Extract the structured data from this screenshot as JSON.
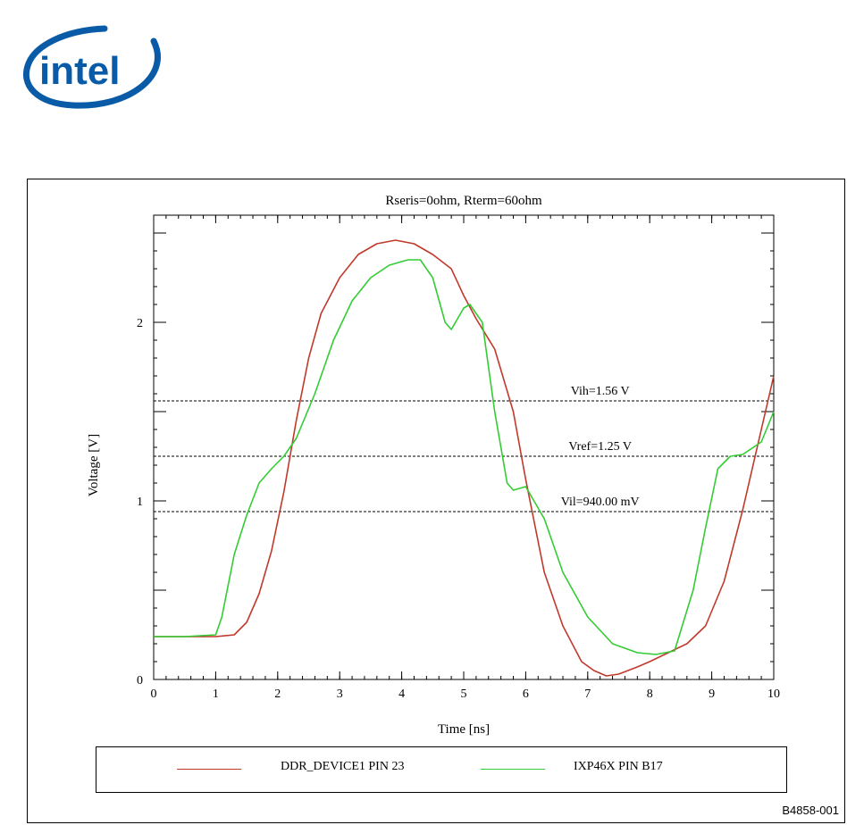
{
  "logo": {
    "text": "intel",
    "color": "#0a5ba7"
  },
  "figure_id": "B4858-001",
  "chart_data": {
    "type": "line",
    "title": "Rseris=0ohm, Rterm=60ohm",
    "xlabel": "Time [ns]",
    "ylabel": "Voltage [V]",
    "xlim": [
      0,
      10
    ],
    "ylim": [
      0,
      2.6
    ],
    "xticks": [
      0,
      1,
      2,
      3,
      4,
      5,
      6,
      7,
      8,
      9,
      10
    ],
    "yticks": [
      0,
      1,
      2
    ],
    "x_minor_step": 0.2,
    "y_minor_step": 0.1,
    "y_major_marks": [
      0,
      0.5,
      1,
      1.5,
      2,
      2.5
    ],
    "reference_lines": [
      {
        "label": "Vih=1.56 V",
        "value": 1.56,
        "label_x": 7.2
      },
      {
        "label": "Vref=1.25 V",
        "value": 1.25,
        "label_x": 7.2
      },
      {
        "label": "Vil=940.00 mV",
        "value": 0.94,
        "label_x": 7.2
      }
    ],
    "series": [
      {
        "name": "DDR_DEVICE1 PIN 23",
        "color": "#c0392b",
        "x": [
          0,
          0.5,
          1.0,
          1.3,
          1.5,
          1.7,
          1.9,
          2.1,
          2.3,
          2.5,
          2.7,
          3.0,
          3.3,
          3.6,
          3.9,
          4.2,
          4.5,
          4.8,
          5.0,
          5.2,
          5.5,
          5.8,
          6.0,
          6.3,
          6.6,
          6.9,
          7.1,
          7.3,
          7.5,
          7.8,
          8.0,
          8.3,
          8.6,
          8.9,
          9.2,
          9.5,
          9.8,
          10.0
        ],
        "y": [
          0.24,
          0.24,
          0.24,
          0.25,
          0.32,
          0.48,
          0.72,
          1.05,
          1.45,
          1.8,
          2.05,
          2.25,
          2.38,
          2.44,
          2.46,
          2.44,
          2.38,
          2.3,
          2.15,
          2.02,
          1.85,
          1.5,
          1.12,
          0.6,
          0.3,
          0.1,
          0.05,
          0.02,
          0.03,
          0.07,
          0.1,
          0.15,
          0.2,
          0.3,
          0.55,
          0.95,
          1.4,
          1.7
        ]
      },
      {
        "name": "IXP46X PIN B17",
        "color": "#33cc33",
        "x": [
          0,
          0.5,
          1.0,
          1.1,
          1.3,
          1.5,
          1.7,
          1.9,
          2.1,
          2.3,
          2.6,
          2.9,
          3.2,
          3.5,
          3.8,
          4.1,
          4.3,
          4.5,
          4.7,
          4.8,
          4.9,
          5.0,
          5.1,
          5.3,
          5.5,
          5.7,
          5.8,
          6.0,
          6.3,
          6.6,
          7.0,
          7.4,
          7.8,
          8.1,
          8.4,
          8.7,
          8.9,
          9.1,
          9.3,
          9.5,
          9.8,
          10.0
        ],
        "y": [
          0.24,
          0.24,
          0.25,
          0.35,
          0.7,
          0.92,
          1.1,
          1.18,
          1.25,
          1.35,
          1.6,
          1.9,
          2.12,
          2.25,
          2.32,
          2.35,
          2.35,
          2.25,
          2.0,
          1.96,
          2.02,
          2.08,
          2.1,
          2.0,
          1.5,
          1.1,
          1.06,
          1.08,
          0.9,
          0.6,
          0.35,
          0.2,
          0.15,
          0.14,
          0.16,
          0.5,
          0.85,
          1.18,
          1.25,
          1.26,
          1.33,
          1.5
        ]
      }
    ],
    "legend": "bottom"
  }
}
